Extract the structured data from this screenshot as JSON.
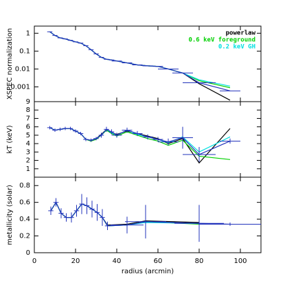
{
  "chart_data": [
    {
      "type": "line",
      "log_y": true,
      "ylabel": "XSPEC normalization",
      "legend": "upper right",
      "show_xtick_labels": false,
      "x": [
        7.5,
        10,
        12.5,
        15,
        17.5,
        20,
        22.5,
        25,
        27.5,
        30,
        32.5,
        35,
        37.5,
        40,
        45,
        50,
        55,
        60,
        65,
        72,
        80,
        95
      ],
      "xlim": [
        0,
        110
      ],
      "xticks": [
        0,
        20,
        40,
        60,
        80,
        100
      ],
      "ylim": [
        0.00015,
        2.5
      ],
      "yticks": [
        1,
        0.1,
        0.01,
        0.001
      ],
      "series": [
        {
          "name": "powerlaw",
          "color": "#000000",
          "values": [
            1.2,
            0.75,
            0.55,
            0.48,
            0.4,
            0.33,
            0.28,
            0.2,
            0.12,
            0.07,
            0.045,
            0.035,
            0.032,
            0.028,
            0.022,
            0.017,
            0.015,
            0.014,
            0.01,
            0.006,
            0.0015,
            0.00018
          ]
        },
        {
          "name": "0.6 keV foreground",
          "color": "#00d000",
          "values": [
            1.2,
            0.75,
            0.55,
            0.48,
            0.4,
            0.33,
            0.28,
            0.2,
            0.12,
            0.07,
            0.045,
            0.035,
            0.032,
            0.028,
            0.022,
            0.017,
            0.015,
            0.014,
            0.01,
            0.006,
            0.0022,
            0.0009
          ]
        },
        {
          "name": "0.2 keV GH",
          "color": "#00e0e0",
          "values": [
            1.2,
            0.75,
            0.55,
            0.48,
            0.4,
            0.33,
            0.28,
            0.2,
            0.12,
            0.07,
            0.045,
            0.035,
            0.032,
            0.028,
            0.022,
            0.017,
            0.015,
            0.014,
            0.01,
            0.006,
            0.0025,
            0.0011
          ]
        },
        {
          "color": "#2233bb",
          "values": [
            1.2,
            0.75,
            0.55,
            0.48,
            0.4,
            0.33,
            0.28,
            0.2,
            0.12,
            0.07,
            0.045,
            0.035,
            0.032,
            0.028,
            0.022,
            0.017,
            0.015,
            0.014,
            0.01,
            0.006,
            0.0017,
            0.0006
          ],
          "xerr": [
            1.25,
            1.25,
            1.25,
            1.25,
            1.25,
            1.25,
            1.25,
            1.25,
            1.25,
            1.25,
            1.25,
            1.25,
            1.25,
            2.5,
            2.5,
            2.5,
            2.5,
            2.5,
            5,
            5,
            8,
            5
          ]
        }
      ]
    },
    {
      "type": "line",
      "ylabel": "kT (keV)",
      "show_xtick_labels": false,
      "x": [
        7.5,
        10,
        12.5,
        15,
        17.5,
        20,
        22.5,
        25,
        27.5,
        30,
        32.5,
        35,
        37.5,
        40,
        45,
        50,
        55,
        60,
        65,
        72,
        80,
        95
      ],
      "xlim": [
        0,
        110
      ],
      "xticks": [
        0,
        20,
        40,
        60,
        80,
        100
      ],
      "ylim": [
        0,
        9
      ],
      "yticks": [
        1,
        2,
        3,
        4,
        5,
        6,
        7,
        8,
        9
      ],
      "series": [
        {
          "color": "#000000",
          "values": [
            5.9,
            5.6,
            5.7,
            5.8,
            5.8,
            5.5,
            5.2,
            4.5,
            4.4,
            4.6,
            5.1,
            5.7,
            5.3,
            5.1,
            5.5,
            5.2,
            4.9,
            4.6,
            4.0,
            4.6,
            1.7,
            5.8
          ]
        },
        {
          "color": "#00d000",
          "values": [
            5.9,
            5.6,
            5.7,
            5.8,
            5.8,
            5.5,
            5.2,
            4.5,
            4.3,
            4.5,
            5.0,
            5.6,
            5.2,
            4.9,
            5.4,
            5.0,
            4.6,
            4.3,
            3.8,
            4.4,
            2.5,
            2.1
          ]
        },
        {
          "color": "#00e0e0",
          "values": [
            5.9,
            5.6,
            5.7,
            5.8,
            5.8,
            5.5,
            5.2,
            4.5,
            4.4,
            4.6,
            5.0,
            5.7,
            5.3,
            5.0,
            5.6,
            5.1,
            4.8,
            4.5,
            4.1,
            4.8,
            3.0,
            4.8
          ]
        },
        {
          "color": "#2233bb",
          "values": [
            5.9,
            5.6,
            5.7,
            5.8,
            5.8,
            5.5,
            5.2,
            4.5,
            4.4,
            4.6,
            5.0,
            5.7,
            5.4,
            5.0,
            5.6,
            5.2,
            4.8,
            4.5,
            4.2,
            4.7,
            2.7,
            4.3
          ],
          "yerr": [
            0.2,
            0.2,
            0.2,
            0.2,
            0.2,
            0.2,
            0.2,
            0.2,
            0.2,
            0.2,
            0.3,
            0.3,
            0.3,
            0.3,
            0.3,
            0.3,
            0.3,
            0.3,
            0.4,
            1.3,
            0.9,
            0.3
          ],
          "xerr": [
            1.25,
            1.25,
            1.25,
            1.25,
            1.25,
            1.25,
            1.25,
            1.25,
            1.25,
            1.25,
            1.25,
            1.25,
            1.25,
            2.5,
            2.5,
            2.5,
            2.5,
            2.5,
            5,
            5,
            8,
            5
          ]
        }
      ]
    },
    {
      "type": "line",
      "ylabel": "metallicity (solar)",
      "xlabel": "radius (arcmin)",
      "show_xtick_labels": true,
      "x": [
        8,
        10.5,
        13,
        15.5,
        18,
        20.5,
        23,
        25.5,
        28,
        30.5,
        33,
        35.5,
        45,
        54,
        80,
        95
      ],
      "xlim": [
        0,
        110
      ],
      "xticks": [
        0,
        20,
        40,
        60,
        80,
        100
      ],
      "ylim": [
        0,
        0.9
      ],
      "yticks": [
        0,
        0.2,
        0.4,
        0.6,
        0.8
      ],
      "series": [
        {
          "color": "#000000",
          "values": [
            0.5,
            0.6,
            0.47,
            0.42,
            0.42,
            0.5,
            0.58,
            0.56,
            0.52,
            0.48,
            0.42,
            0.33,
            0.34,
            0.38,
            0.36,
            null
          ]
        },
        {
          "color": "#00d000",
          "values": [
            0.5,
            0.6,
            0.47,
            0.42,
            0.42,
            0.5,
            0.58,
            0.56,
            0.52,
            0.48,
            0.42,
            0.32,
            0.33,
            0.37,
            0.34,
            null
          ]
        },
        {
          "color": "#00e0e0",
          "values": [
            0.5,
            0.6,
            0.47,
            0.42,
            0.42,
            0.5,
            0.58,
            0.56,
            0.52,
            0.48,
            0.42,
            0.32,
            0.33,
            0.36,
            0.35,
            null
          ]
        },
        {
          "color": "#2233bb",
          "values": [
            0.5,
            0.6,
            0.47,
            0.42,
            0.42,
            0.5,
            0.58,
            0.56,
            0.52,
            0.48,
            0.42,
            0.32,
            0.33,
            0.37,
            0.35,
            0.34
          ],
          "yerr": [
            0.05,
            0.05,
            0.06,
            0.05,
            0.06,
            0.07,
            0.12,
            0.1,
            0.1,
            0.1,
            0.1,
            0.05,
            0.1,
            0.2,
            0.22,
            0.02
          ],
          "xerr": [
            1.25,
            1.25,
            1.25,
            1.25,
            1.25,
            1.25,
            1.25,
            1.25,
            1.25,
            1.25,
            1.25,
            1.25,
            8,
            10,
            12,
            15
          ]
        }
      ]
    }
  ]
}
